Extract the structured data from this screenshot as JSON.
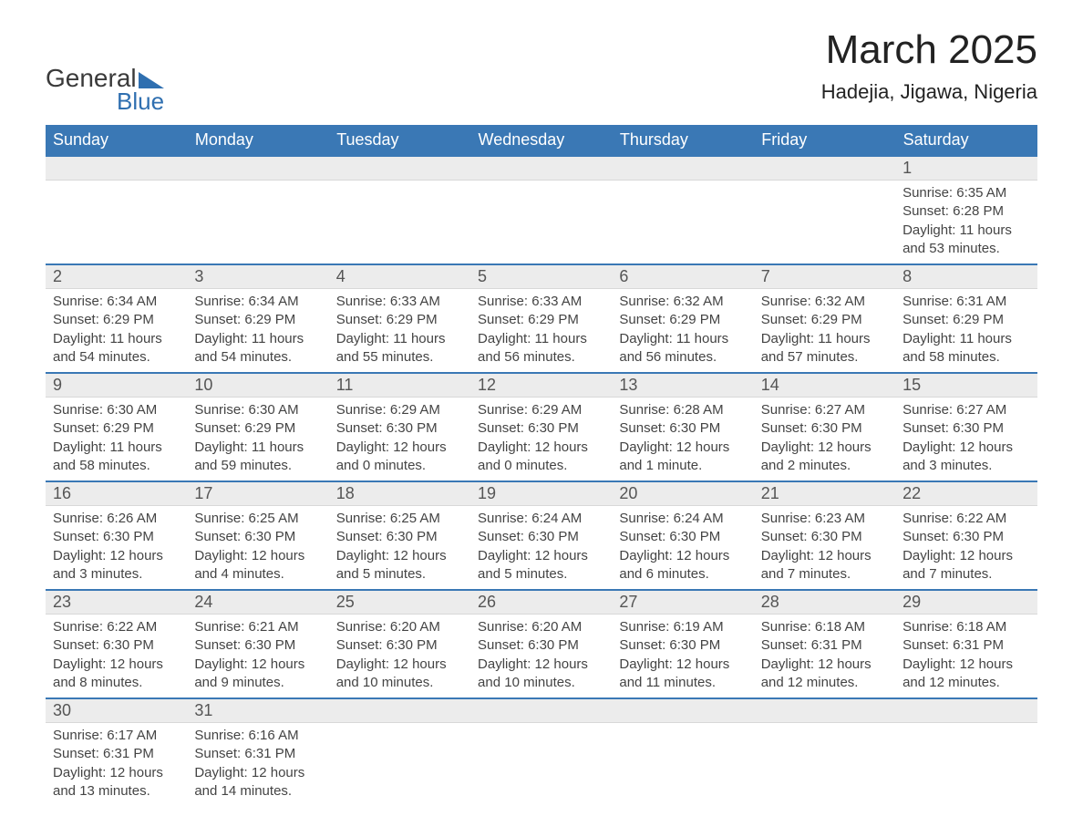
{
  "logo": {
    "text1": "General",
    "text2": "Blue"
  },
  "title": "March 2025",
  "location": "Hadejia, Jigawa, Nigeria",
  "colors": {
    "header_bg": "#3a78b5",
    "header_text": "#ffffff",
    "row_border": "#3a78b5",
    "day_row_bg": "#ececec",
    "text": "#444444"
  },
  "weekdays": [
    "Sunday",
    "Monday",
    "Tuesday",
    "Wednesday",
    "Thursday",
    "Friday",
    "Saturday"
  ],
  "weeks": [
    [
      {
        "day": "",
        "sunrise": "",
        "sunset": "",
        "daylight": ""
      },
      {
        "day": "",
        "sunrise": "",
        "sunset": "",
        "daylight": ""
      },
      {
        "day": "",
        "sunrise": "",
        "sunset": "",
        "daylight": ""
      },
      {
        "day": "",
        "sunrise": "",
        "sunset": "",
        "daylight": ""
      },
      {
        "day": "",
        "sunrise": "",
        "sunset": "",
        "daylight": ""
      },
      {
        "day": "",
        "sunrise": "",
        "sunset": "",
        "daylight": ""
      },
      {
        "day": "1",
        "sunrise": "Sunrise: 6:35 AM",
        "sunset": "Sunset: 6:28 PM",
        "daylight": "Daylight: 11 hours and 53 minutes."
      }
    ],
    [
      {
        "day": "2",
        "sunrise": "Sunrise: 6:34 AM",
        "sunset": "Sunset: 6:29 PM",
        "daylight": "Daylight: 11 hours and 54 minutes."
      },
      {
        "day": "3",
        "sunrise": "Sunrise: 6:34 AM",
        "sunset": "Sunset: 6:29 PM",
        "daylight": "Daylight: 11 hours and 54 minutes."
      },
      {
        "day": "4",
        "sunrise": "Sunrise: 6:33 AM",
        "sunset": "Sunset: 6:29 PM",
        "daylight": "Daylight: 11 hours and 55 minutes."
      },
      {
        "day": "5",
        "sunrise": "Sunrise: 6:33 AM",
        "sunset": "Sunset: 6:29 PM",
        "daylight": "Daylight: 11 hours and 56 minutes."
      },
      {
        "day": "6",
        "sunrise": "Sunrise: 6:32 AM",
        "sunset": "Sunset: 6:29 PM",
        "daylight": "Daylight: 11 hours and 56 minutes."
      },
      {
        "day": "7",
        "sunrise": "Sunrise: 6:32 AM",
        "sunset": "Sunset: 6:29 PM",
        "daylight": "Daylight: 11 hours and 57 minutes."
      },
      {
        "day": "8",
        "sunrise": "Sunrise: 6:31 AM",
        "sunset": "Sunset: 6:29 PM",
        "daylight": "Daylight: 11 hours and 58 minutes."
      }
    ],
    [
      {
        "day": "9",
        "sunrise": "Sunrise: 6:30 AM",
        "sunset": "Sunset: 6:29 PM",
        "daylight": "Daylight: 11 hours and 58 minutes."
      },
      {
        "day": "10",
        "sunrise": "Sunrise: 6:30 AM",
        "sunset": "Sunset: 6:29 PM",
        "daylight": "Daylight: 11 hours and 59 minutes."
      },
      {
        "day": "11",
        "sunrise": "Sunrise: 6:29 AM",
        "sunset": "Sunset: 6:30 PM",
        "daylight": "Daylight: 12 hours and 0 minutes."
      },
      {
        "day": "12",
        "sunrise": "Sunrise: 6:29 AM",
        "sunset": "Sunset: 6:30 PM",
        "daylight": "Daylight: 12 hours and 0 minutes."
      },
      {
        "day": "13",
        "sunrise": "Sunrise: 6:28 AM",
        "sunset": "Sunset: 6:30 PM",
        "daylight": "Daylight: 12 hours and 1 minute."
      },
      {
        "day": "14",
        "sunrise": "Sunrise: 6:27 AM",
        "sunset": "Sunset: 6:30 PM",
        "daylight": "Daylight: 12 hours and 2 minutes."
      },
      {
        "day": "15",
        "sunrise": "Sunrise: 6:27 AM",
        "sunset": "Sunset: 6:30 PM",
        "daylight": "Daylight: 12 hours and 3 minutes."
      }
    ],
    [
      {
        "day": "16",
        "sunrise": "Sunrise: 6:26 AM",
        "sunset": "Sunset: 6:30 PM",
        "daylight": "Daylight: 12 hours and 3 minutes."
      },
      {
        "day": "17",
        "sunrise": "Sunrise: 6:25 AM",
        "sunset": "Sunset: 6:30 PM",
        "daylight": "Daylight: 12 hours and 4 minutes."
      },
      {
        "day": "18",
        "sunrise": "Sunrise: 6:25 AM",
        "sunset": "Sunset: 6:30 PM",
        "daylight": "Daylight: 12 hours and 5 minutes."
      },
      {
        "day": "19",
        "sunrise": "Sunrise: 6:24 AM",
        "sunset": "Sunset: 6:30 PM",
        "daylight": "Daylight: 12 hours and 5 minutes."
      },
      {
        "day": "20",
        "sunrise": "Sunrise: 6:24 AM",
        "sunset": "Sunset: 6:30 PM",
        "daylight": "Daylight: 12 hours and 6 minutes."
      },
      {
        "day": "21",
        "sunrise": "Sunrise: 6:23 AM",
        "sunset": "Sunset: 6:30 PM",
        "daylight": "Daylight: 12 hours and 7 minutes."
      },
      {
        "day": "22",
        "sunrise": "Sunrise: 6:22 AM",
        "sunset": "Sunset: 6:30 PM",
        "daylight": "Daylight: 12 hours and 7 minutes."
      }
    ],
    [
      {
        "day": "23",
        "sunrise": "Sunrise: 6:22 AM",
        "sunset": "Sunset: 6:30 PM",
        "daylight": "Daylight: 12 hours and 8 minutes."
      },
      {
        "day": "24",
        "sunrise": "Sunrise: 6:21 AM",
        "sunset": "Sunset: 6:30 PM",
        "daylight": "Daylight: 12 hours and 9 minutes."
      },
      {
        "day": "25",
        "sunrise": "Sunrise: 6:20 AM",
        "sunset": "Sunset: 6:30 PM",
        "daylight": "Daylight: 12 hours and 10 minutes."
      },
      {
        "day": "26",
        "sunrise": "Sunrise: 6:20 AM",
        "sunset": "Sunset: 6:30 PM",
        "daylight": "Daylight: 12 hours and 10 minutes."
      },
      {
        "day": "27",
        "sunrise": "Sunrise: 6:19 AM",
        "sunset": "Sunset: 6:30 PM",
        "daylight": "Daylight: 12 hours and 11 minutes."
      },
      {
        "day": "28",
        "sunrise": "Sunrise: 6:18 AM",
        "sunset": "Sunset: 6:31 PM",
        "daylight": "Daylight: 12 hours and 12 minutes."
      },
      {
        "day": "29",
        "sunrise": "Sunrise: 6:18 AM",
        "sunset": "Sunset: 6:31 PM",
        "daylight": "Daylight: 12 hours and 12 minutes."
      }
    ],
    [
      {
        "day": "30",
        "sunrise": "Sunrise: 6:17 AM",
        "sunset": "Sunset: 6:31 PM",
        "daylight": "Daylight: 12 hours and 13 minutes."
      },
      {
        "day": "31",
        "sunrise": "Sunrise: 6:16 AM",
        "sunset": "Sunset: 6:31 PM",
        "daylight": "Daylight: 12 hours and 14 minutes."
      },
      {
        "day": "",
        "sunrise": "",
        "sunset": "",
        "daylight": ""
      },
      {
        "day": "",
        "sunrise": "",
        "sunset": "",
        "daylight": ""
      },
      {
        "day": "",
        "sunrise": "",
        "sunset": "",
        "daylight": ""
      },
      {
        "day": "",
        "sunrise": "",
        "sunset": "",
        "daylight": ""
      },
      {
        "day": "",
        "sunrise": "",
        "sunset": "",
        "daylight": ""
      }
    ]
  ]
}
